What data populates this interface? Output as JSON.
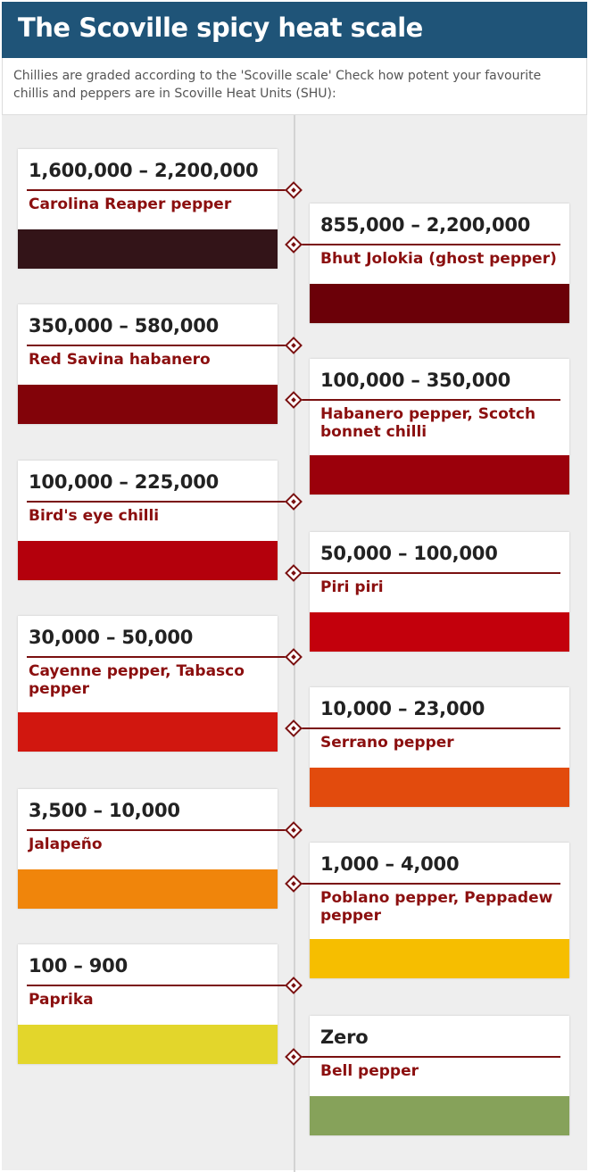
{
  "header": {
    "title": "The Scoville spicy heat scale",
    "intro": "Chillies are graded according to the 'Scoville scale' Check how potent your favourite chillis and peppers are in Scoville Heat Units (SHU):"
  },
  "peppers": [
    {
      "range": "1,600,000 – 2,200,000",
      "name": "Carolina Reaper pepper",
      "color": "#331418"
    },
    {
      "range": "855,000 – 2,200,000",
      "name": "Bhut Jolokia (ghost pepper)",
      "color": "#6b0008"
    },
    {
      "range": "350,000 – 580,000",
      "name": "Red Savina habanero",
      "color": "#820309"
    },
    {
      "range": "100,000 – 350,000",
      "name": "Habanero pepper, Scotch bonnet chilli",
      "color": "#9b000b"
    },
    {
      "range": "100,000 – 225,000",
      "name": "Bird's eye chilli",
      "color": "#b4000c"
    },
    {
      "range": "50,000 – 100,000",
      "name": "Piri piri",
      "color": "#c3000c"
    },
    {
      "range": "30,000 – 50,000",
      "name": "Cayenne pepper, Tabasco pepper",
      "color": "#d1170f"
    },
    {
      "range": "10,000 – 23,000",
      "name": "Serrano pepper",
      "color": "#e24b0d"
    },
    {
      "range": "3,500 – 10,000",
      "name": "Jalapeño",
      "color": "#f0850b"
    },
    {
      "range": "1,000 – 4,000",
      "name": "Poblano pepper, Peppadew pepper",
      "color": "#f6be00"
    },
    {
      "range": "100 – 900",
      "name": "Paprika",
      "color": "#e3d62b"
    },
    {
      "range": "Zero",
      "name": "Bell pepper",
      "color": "#86a25a"
    }
  ]
}
